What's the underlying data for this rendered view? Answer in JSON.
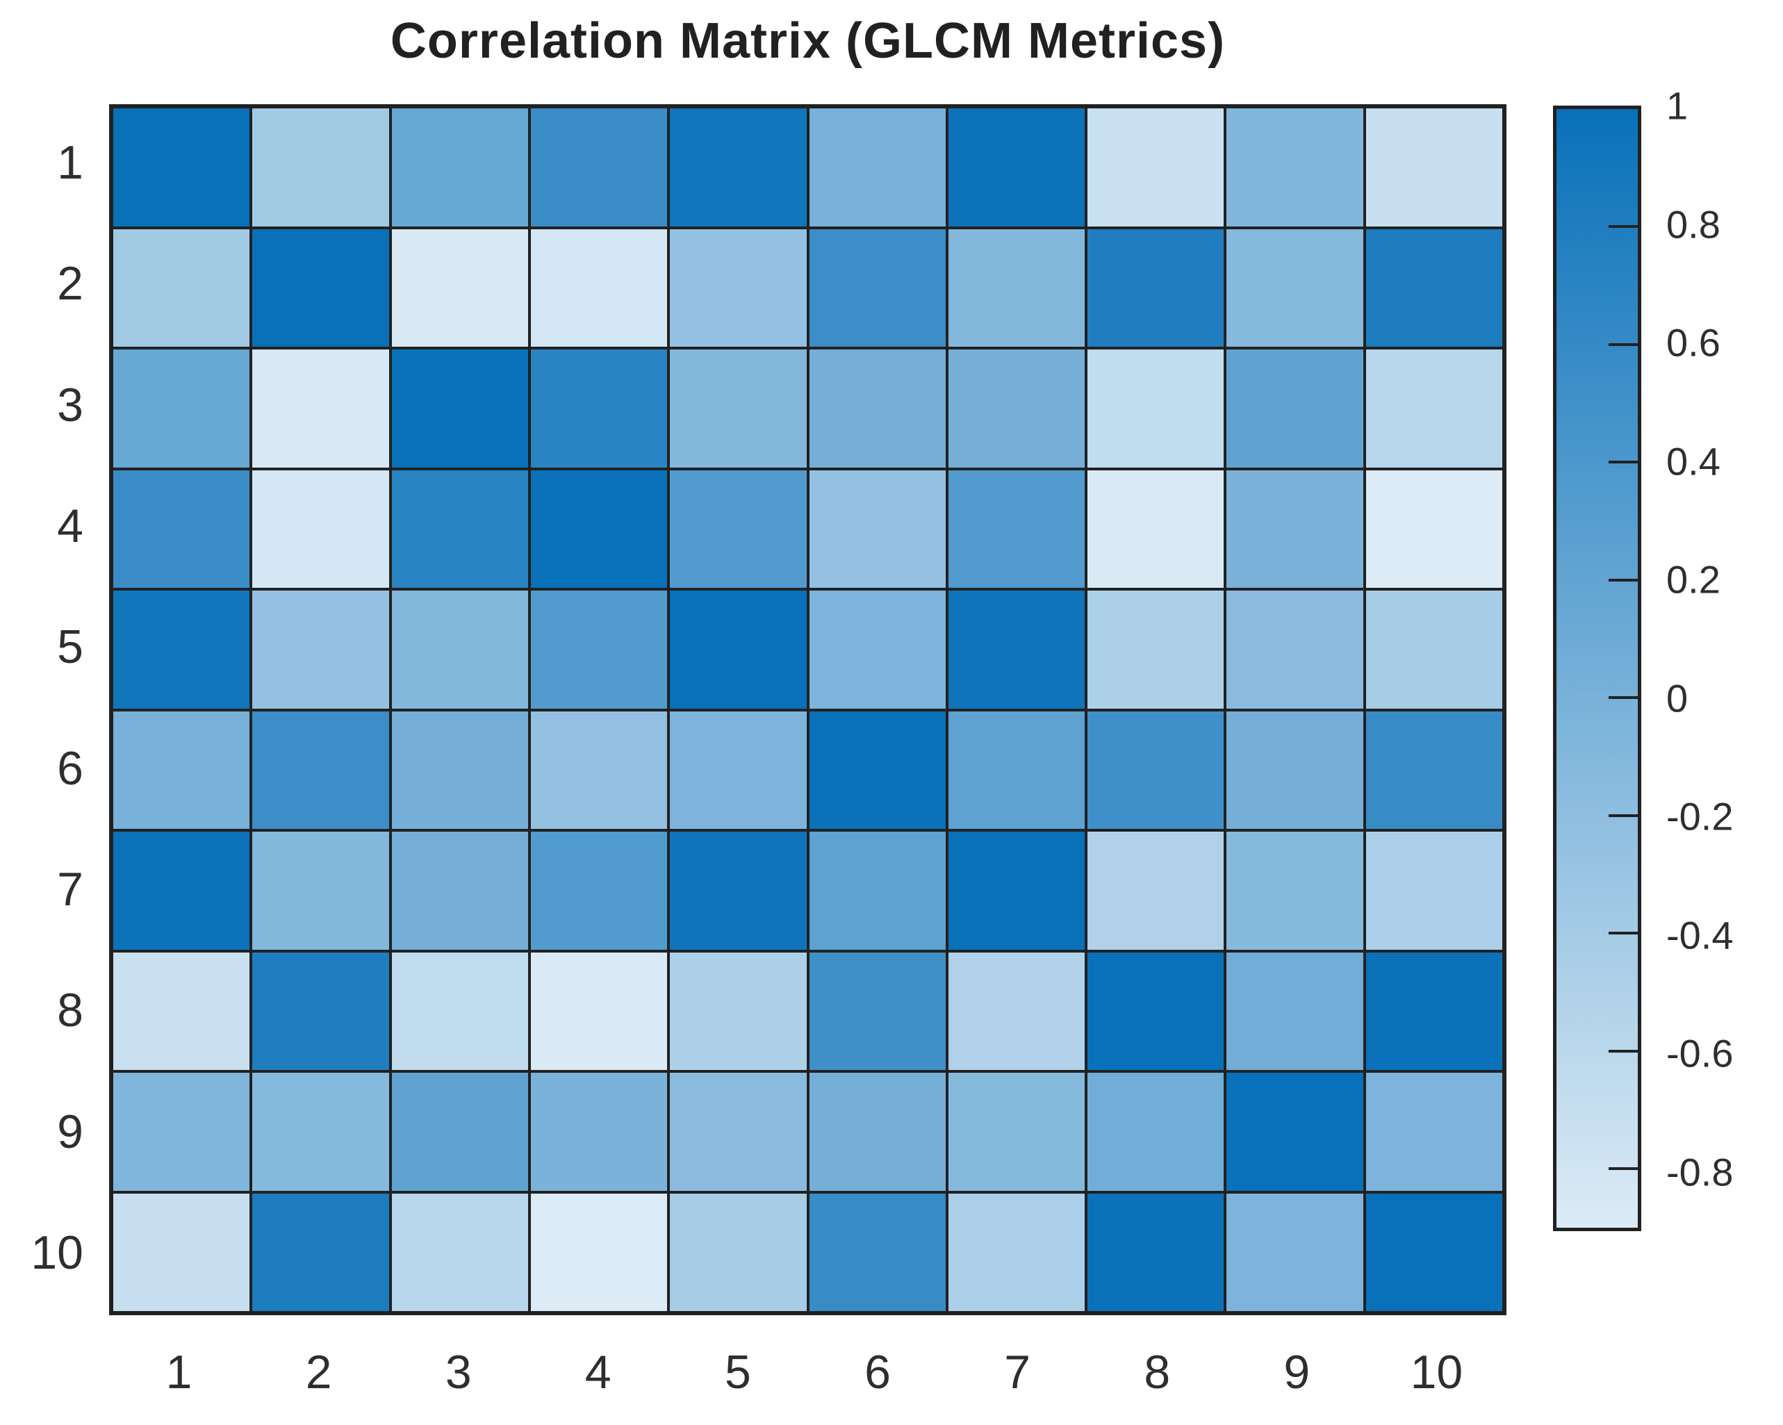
{
  "title": "Correlation Matrix (GLCM Metrics)",
  "styles": {
    "grid_line_color": "#212121",
    "text_color": "#2e2e2e",
    "background": "#ffffff"
  },
  "chart_data": {
    "type": "heatmap",
    "title": "Correlation Matrix (GLCM Metrics)",
    "x_labels": [
      "1",
      "2",
      "3",
      "4",
      "5",
      "6",
      "7",
      "8",
      "9",
      "10"
    ],
    "y_labels": [
      "1",
      "2",
      "3",
      "4",
      "5",
      "6",
      "7",
      "8",
      "9",
      "10"
    ],
    "matrix": [
      [
        1.0,
        -0.38,
        0.15,
        0.56,
        0.94,
        0.0,
        0.97,
        -0.73,
        -0.07,
        -0.71
      ],
      [
        -0.38,
        1.0,
        -0.86,
        -0.83,
        -0.25,
        0.55,
        -0.1,
        0.79,
        -0.12,
        0.83
      ],
      [
        0.15,
        -0.86,
        1.0,
        0.7,
        -0.1,
        0.03,
        0.03,
        -0.66,
        0.22,
        -0.57
      ],
      [
        0.56,
        -0.83,
        0.7,
        1.0,
        0.34,
        -0.25,
        0.35,
        -0.88,
        -0.02,
        -0.9
      ],
      [
        0.94,
        -0.25,
        -0.1,
        0.34,
        1.0,
        -0.05,
        0.95,
        -0.48,
        -0.16,
        -0.41
      ],
      [
        0.0,
        0.55,
        0.03,
        -0.25,
        -0.05,
        1.0,
        0.24,
        0.51,
        0.03,
        0.58
      ],
      [
        0.97,
        -0.1,
        0.03,
        0.35,
        0.95,
        0.24,
        1.0,
        -0.5,
        -0.13,
        -0.46
      ],
      [
        -0.73,
        0.79,
        -0.66,
        -0.88,
        -0.48,
        0.51,
        -0.5,
        1.0,
        0.06,
        0.98
      ],
      [
        -0.07,
        -0.12,
        0.22,
        -0.02,
        -0.16,
        0.03,
        -0.13,
        0.06,
        1.0,
        -0.05
      ],
      [
        -0.71,
        0.83,
        -0.57,
        -0.9,
        -0.41,
        0.58,
        -0.46,
        0.98,
        -0.05,
        1.0
      ]
    ],
    "color_scale": {
      "min": -0.9,
      "max": 1.0,
      "min_color": "#dcebf6",
      "max_color": "#0971b9"
    },
    "colorbar_ticks": [
      {
        "value": 1.0,
        "label": "1"
      },
      {
        "value": 0.8,
        "label": "0.8"
      },
      {
        "value": 0.6,
        "label": "0.6"
      },
      {
        "value": 0.4,
        "label": "0.4"
      },
      {
        "value": 0.2,
        "label": "0.2"
      },
      {
        "value": 0.0,
        "label": "0"
      },
      {
        "value": -0.2,
        "label": "-0.2"
      },
      {
        "value": -0.4,
        "label": "-0.4"
      },
      {
        "value": -0.6,
        "label": "-0.6"
      },
      {
        "value": -0.8,
        "label": "-0.8"
      }
    ],
    "legend_position": "right",
    "grid": true
  }
}
